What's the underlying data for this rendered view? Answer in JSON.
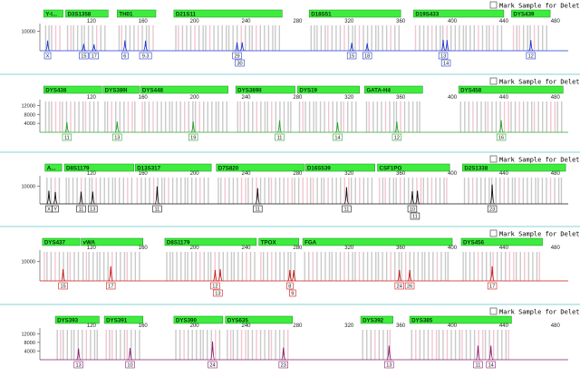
{
  "mark_label": "Mark Sample for Deletion",
  "chart_data": [
    {
      "type": "line",
      "color": "#1f3bd1",
      "x_ticks": [
        120,
        160,
        200,
        240,
        280,
        320,
        360,
        400,
        440,
        480
      ],
      "y_ticks": [
        10000
      ],
      "x_range": [
        80,
        490
      ],
      "y_range": [
        0,
        12000
      ],
      "markers": [
        {
          "name": "Y-I...",
          "start": 83,
          "end": 98
        },
        {
          "name": "D3S1358",
          "start": 100,
          "end": 133
        },
        {
          "name": "TH01",
          "start": 140,
          "end": 170
        },
        {
          "name": "D21S11",
          "start": 184,
          "end": 268
        },
        {
          "name": "D18S51",
          "start": 289,
          "end": 360
        },
        {
          "name": "D19S433",
          "start": 370,
          "end": 440
        },
        {
          "name": "DYS439",
          "start": 446,
          "end": 476
        }
      ],
      "peaks": [
        {
          "x": 86,
          "h": 5200,
          "alleles": [
            "X"
          ]
        },
        {
          "x": 114,
          "h": 3500,
          "alleles": [
            "15"
          ]
        },
        {
          "x": 122,
          "h": 3200,
          "alleles": [
            "17"
          ]
        },
        {
          "x": 146,
          "h": 5300,
          "alleles": [
            "6"
          ]
        },
        {
          "x": 162,
          "h": 5100,
          "alleles": [
            "9.3"
          ]
        },
        {
          "x": 233,
          "h": 4200,
          "alleles": [
            "29",
            "30"
          ]
        },
        {
          "x": 237,
          "h": 4300,
          "alleles": []
        },
        {
          "x": 322,
          "h": 4000,
          "alleles": [
            "15"
          ]
        },
        {
          "x": 334,
          "h": 3800,
          "alleles": [
            "18"
          ]
        },
        {
          "x": 393,
          "h": 5600,
          "alleles": [
            "13",
            "14"
          ]
        },
        {
          "x": 396,
          "h": 5400,
          "alleles": []
        },
        {
          "x": 461,
          "h": 5400,
          "alleles": [
            "12"
          ]
        }
      ]
    },
    {
      "type": "line",
      "color": "#2aa42a",
      "x_ticks": [
        120,
        160,
        200,
        240,
        280,
        320,
        360,
        400,
        440,
        480
      ],
      "y_ticks": [
        4000,
        8000,
        12000
      ],
      "x_range": [
        80,
        490
      ],
      "y_range": [
        0,
        13000
      ],
      "markers": [
        {
          "name": "DYS438",
          "start": 83,
          "end": 128
        },
        {
          "name": "DYS389I",
          "start": 129,
          "end": 157
        },
        {
          "name": "DYS448",
          "start": 158,
          "end": 226
        },
        {
          "name": "DYS389II",
          "start": 232,
          "end": 278
        },
        {
          "name": "DYS19",
          "start": 280,
          "end": 328
        },
        {
          "name": "GATA-H4",
          "start": 332,
          "end": 377
        },
        {
          "name": "DYS458",
          "start": 405,
          "end": 486
        }
      ],
      "peaks": [
        {
          "x": 101,
          "h": 4500,
          "alleles": [
            "11"
          ]
        },
        {
          "x": 140,
          "h": 4800,
          "alleles": [
            "13"
          ]
        },
        {
          "x": 199,
          "h": 4800,
          "alleles": [
            "19"
          ]
        },
        {
          "x": 266,
          "h": 5300,
          "alleles": [
            "11"
          ]
        },
        {
          "x": 311,
          "h": 4500,
          "alleles": [
            "14"
          ]
        },
        {
          "x": 357,
          "h": 4800,
          "alleles": [
            "12"
          ]
        },
        {
          "x": 438,
          "h": 5400,
          "alleles": [
            "16"
          ]
        }
      ]
    },
    {
      "type": "line",
      "color": "#111111",
      "x_ticks": [
        120,
        160,
        200,
        240,
        280,
        320,
        360,
        400,
        440,
        480
      ],
      "y_ticks": [
        10000
      ],
      "x_range": [
        80,
        490
      ],
      "y_range": [
        0,
        14000
      ],
      "markers": [
        {
          "name": "A...",
          "start": 84,
          "end": 97
        },
        {
          "name": "D8S1179",
          "start": 99,
          "end": 153
        },
        {
          "name": "D13S317",
          "start": 154,
          "end": 213
        },
        {
          "name": "D7S820",
          "start": 217,
          "end": 285
        },
        {
          "name": "D16S539",
          "start": 286,
          "end": 340
        },
        {
          "name": "CSF1PO",
          "start": 342,
          "end": 398
        },
        {
          "name": "D2S1338",
          "start": 408,
          "end": 488
        }
      ],
      "peaks": [
        {
          "x": 87,
          "h": 7500,
          "alleles": [
            "X"
          ]
        },
        {
          "x": 92,
          "h": 6800,
          "alleles": [
            "Y"
          ]
        },
        {
          "x": 112,
          "h": 7000,
          "alleles": [
            "11"
          ]
        },
        {
          "x": 121,
          "h": 7000,
          "alleles": [
            "13"
          ]
        },
        {
          "x": 171,
          "h": 10000,
          "alleles": [
            "11"
          ]
        },
        {
          "x": 249,
          "h": 9000,
          "alleles": [
            "11"
          ]
        },
        {
          "x": 318,
          "h": 9500,
          "alleles": [
            "11"
          ]
        },
        {
          "x": 369,
          "h": 7200,
          "alleles": [
            "10",
            "11"
          ]
        },
        {
          "x": 373,
          "h": 7500,
          "alleles": []
        },
        {
          "x": 431,
          "h": 11000,
          "alleles": [
            "23"
          ]
        }
      ]
    },
    {
      "type": "line",
      "color": "#cc1818",
      "x_ticks": [
        120,
        160,
        200,
        240,
        280,
        320,
        360,
        400,
        440,
        480
      ],
      "y_ticks": [
        10000
      ],
      "x_range": [
        80,
        490
      ],
      "y_range": [
        0,
        14000
      ],
      "markers": [
        {
          "name": "DYS437",
          "start": 82,
          "end": 111
        },
        {
          "name": "vWA",
          "start": 112,
          "end": 160
        },
        {
          "name": "D8S1179",
          "start": 177,
          "end": 248
        },
        {
          "name": "TPOX",
          "start": 250,
          "end": 281
        },
        {
          "name": "FGA",
          "start": 284,
          "end": 400
        },
        {
          "name": "DYS456",
          "start": 407,
          "end": 470
        }
      ],
      "peaks": [
        {
          "x": 98,
          "h": 6000,
          "alleles": [
            "15"
          ]
        },
        {
          "x": 135,
          "h": 7500,
          "alleles": [
            "17"
          ]
        },
        {
          "x": 216,
          "h": 5600,
          "alleles": [
            "12",
            "13"
          ]
        },
        {
          "x": 220,
          "h": 6000,
          "alleles": []
        },
        {
          "x": 274,
          "h": 5600,
          "alleles": [
            "8",
            "9"
          ]
        },
        {
          "x": 277,
          "h": 5600,
          "alleles": []
        },
        {
          "x": 359,
          "h": 5600,
          "alleles": [
            "24"
          ]
        },
        {
          "x": 367,
          "h": 5600,
          "alleles": [
            "26"
          ]
        },
        {
          "x": 431,
          "h": 7500,
          "alleles": [
            "17"
          ]
        }
      ]
    },
    {
      "type": "line",
      "color": "#8a1d6e",
      "x_ticks": [
        120,
        160,
        200,
        240,
        280,
        320,
        360,
        400,
        440,
        480
      ],
      "y_ticks": [
        4000,
        8000,
        12000
      ],
      "x_range": [
        80,
        490
      ],
      "y_range": [
        0,
        13000
      ],
      "markers": [
        {
          "name": "DYS393",
          "start": 92,
          "end": 126
        },
        {
          "name": "DYS391",
          "start": 130,
          "end": 160
        },
        {
          "name": "DYS390",
          "start": 184,
          "end": 222
        },
        {
          "name": "DYS635",
          "start": 224,
          "end": 276
        },
        {
          "name": "DYS392",
          "start": 329,
          "end": 354
        },
        {
          "name": "DYS385",
          "start": 367,
          "end": 446
        }
      ],
      "peaks": [
        {
          "x": 110,
          "h": 5200,
          "alleles": [
            "13"
          ]
        },
        {
          "x": 150,
          "h": 5400,
          "alleles": [
            "10"
          ]
        },
        {
          "x": 214,
          "h": 8400,
          "alleles": [
            "24"
          ]
        },
        {
          "x": 269,
          "h": 5600,
          "alleles": [
            "23"
          ]
        },
        {
          "x": 351,
          "h": 6500,
          "alleles": [
            "13"
          ]
        },
        {
          "x": 420,
          "h": 6500,
          "alleles": [
            "11"
          ]
        },
        {
          "x": 430,
          "h": 6500,
          "alleles": [
            "14"
          ]
        }
      ]
    }
  ]
}
